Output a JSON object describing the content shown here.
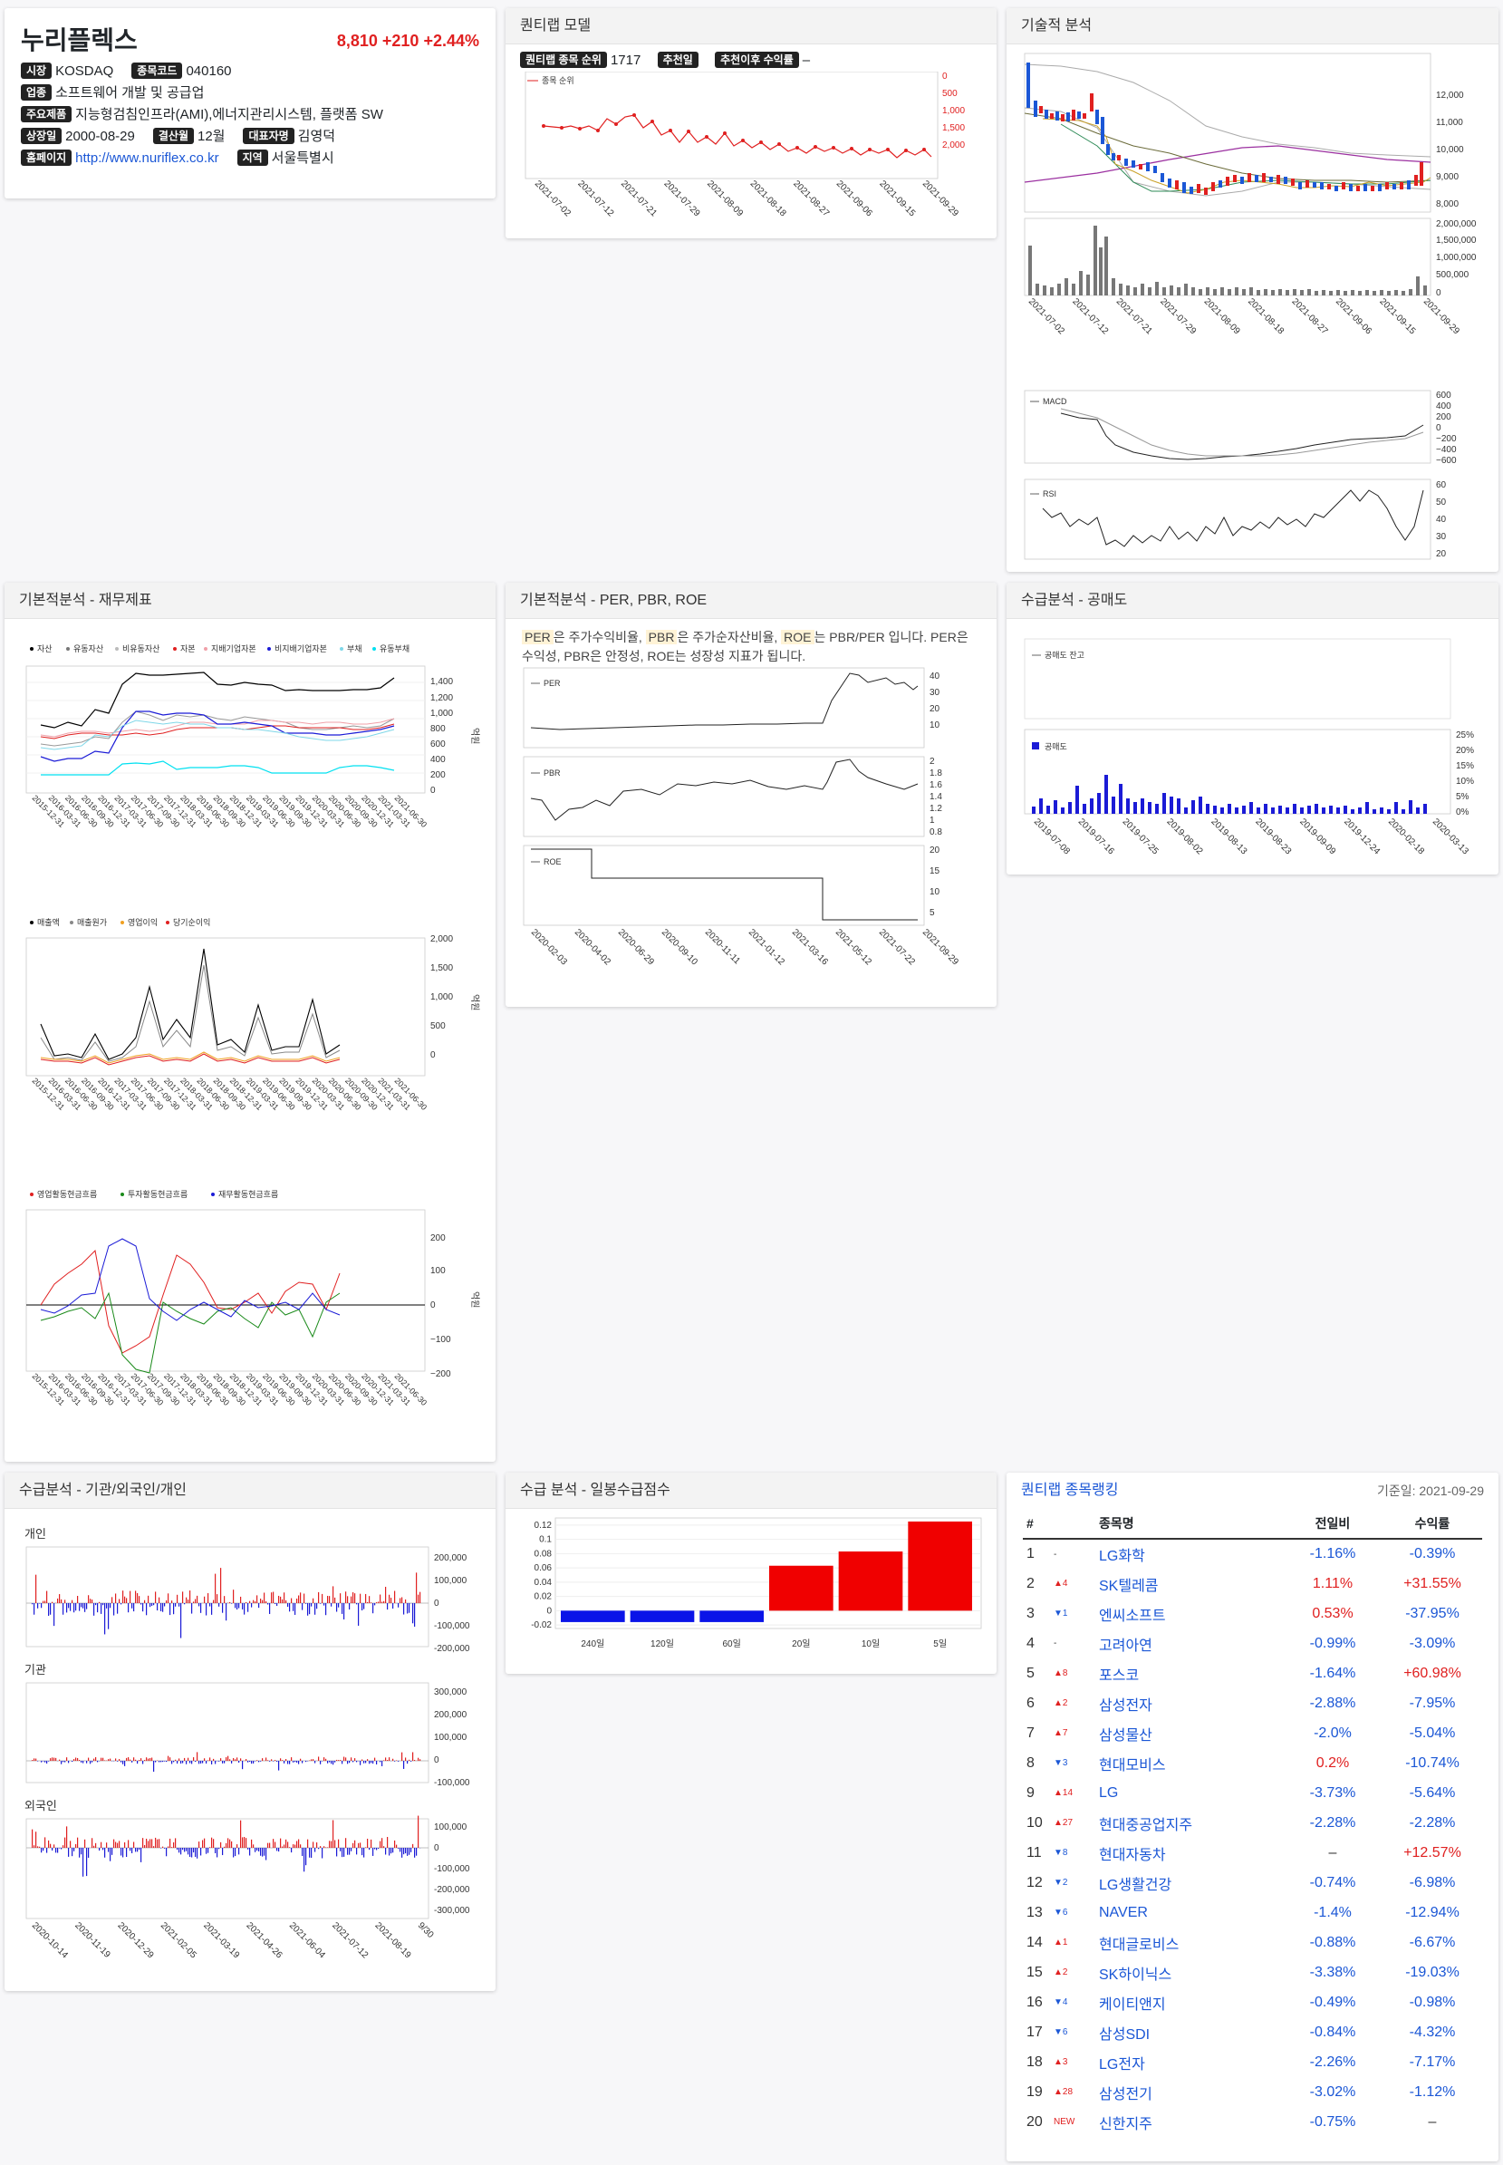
{
  "company": {
    "name": "누리플렉스",
    "price": "8,810",
    "change": "+210",
    "change_pct": "+2.44%",
    "labels": {
      "market": "시장",
      "code": "종목코드",
      "industry": "업종",
      "products": "주요제품",
      "listed": "상장일",
      "fiscal": "결산월",
      "ceo": "대표자명",
      "homepage": "홈페이지",
      "region": "지역"
    },
    "market": "KOSDAQ",
    "code": "040160",
    "industry": "소프트웨어 개발 및 공급업",
    "products": "지능형검침인프라(AMI),에너지관리시스템, 플랫폼 SW",
    "listed": "2000-08-29",
    "fiscal": "12월",
    "ceo": "김영덕",
    "homepage": "http://www.nuriflex.co.kr",
    "region": "서울특별시"
  },
  "quantimap": {
    "title": "퀀티랩 모델",
    "rank_label": "퀀티랩 종목 순위",
    "rank_value": "1717",
    "recommend_label": "추천일",
    "return_label": "추천이후 수익률",
    "return_value": "–",
    "legend": "종목 순위",
    "yticks": [
      "0",
      "500",
      "1,000",
      "1,500",
      "2,000"
    ],
    "xticks": [
      "2021-07-02",
      "2021-07-12",
      "2021-07-21",
      "2021-07-29",
      "2021-08-09",
      "2021-08-18",
      "2021-08-27",
      "2021-09-06",
      "2021-09-15",
      "2021-09-29"
    ]
  },
  "technical": {
    "title": "기술적 분석",
    "price_ticks": [
      "12,000",
      "11,000",
      "10,000",
      "9,000",
      "8,000"
    ],
    "volume_ticks": [
      "2,000,000",
      "1,500,000",
      "1,000,000",
      "500,000",
      "0"
    ],
    "xticks": [
      "2021-07-02",
      "2021-07-12",
      "2021-07-21",
      "2021-07-29",
      "2021-08-09",
      "2021-08-18",
      "2021-08-27",
      "2021-09-06",
      "2021-09-15",
      "2021-09-29"
    ],
    "macd_label": "MACD",
    "macd_ticks": [
      "600",
      "400",
      "200",
      "0",
      "−200",
      "−400",
      "−600"
    ],
    "rsi_label": "RSI",
    "rsi_ticks": [
      "60",
      "50",
      "40",
      "30",
      "20"
    ]
  },
  "fundamental": {
    "title": "기본적분석 - 재무제표",
    "bs_legend": [
      "자산",
      "유동자산",
      "비유동자산",
      "자본",
      "지배기업자본",
      "비지배기업자본",
      "부채",
      "유동부채"
    ],
    "bs_ticks": [
      "1,400",
      "1,200",
      "1,000",
      "800",
      "600",
      "400",
      "200",
      "0"
    ],
    "pl_legend": [
      "매출액",
      "매출원가",
      "영업이익",
      "당기순이익"
    ],
    "pl_ticks": [
      "2,000",
      "1,500",
      "1,000",
      "500",
      "0"
    ],
    "cf_legend": [
      "영업활동현금흐름",
      "투자활동현금흐름",
      "재무활동현금흐름"
    ],
    "cf_ticks": [
      "200",
      "100",
      "0",
      "−100",
      "−200"
    ],
    "unit": "억원",
    "xticks": [
      "2015-12-31",
      "2016-03-31",
      "2016-06-30",
      "2016-09-30",
      "2016-12-31",
      "2017-03-31",
      "2017-06-30",
      "2017-09-30",
      "2017-12-31",
      "2018-03-31",
      "2018-06-30",
      "2018-09-30",
      "2018-12-31",
      "2019-03-31",
      "2019-06-30",
      "2019-09-30",
      "2019-12-31",
      "2020-03-31",
      "2020-06-30",
      "2020-09-30",
      "2020-12-31",
      "2021-03-31",
      "2021-06-30"
    ]
  },
  "valuation": {
    "title": "기본적분석 - PER, PBR, ROE",
    "desc_parts": [
      "PER",
      "은 주가수익비율, ",
      "PBR",
      "은 주가순자산비율, ",
      "ROE",
      "는 PBR/PER 입니다. PER은 수익성, PBR은 안정성, ROE는 성장성 지표가 됩니다."
    ],
    "per_label": "PER",
    "per_ticks": [
      "40",
      "30",
      "20",
      "10"
    ],
    "pbr_label": "PBR",
    "pbr_ticks": [
      "2",
      "1.8",
      "1.6",
      "1.4",
      "1.2",
      "1",
      "0.8"
    ],
    "roe_label": "ROE",
    "roe_ticks": [
      "20",
      "15",
      "10",
      "5"
    ],
    "xticks": [
      "2020-02-03",
      "2020-04-02",
      "2020-06-29",
      "2020-09-10",
      "2020-11-11",
      "2021-01-12",
      "2021-03-16",
      "2021-05-12",
      "2021-07-22",
      "2021-09-29"
    ]
  },
  "short": {
    "title": "수급분석 - 공매도",
    "balance_label": "공매도 잔고",
    "volume_label": "공매도",
    "pct_ticks": [
      "25%",
      "20%",
      "15%",
      "10%",
      "5%",
      "0%"
    ],
    "xticks": [
      "2019-07-08",
      "2019-07-16",
      "2019-07-25",
      "2019-08-02",
      "2019-08-13",
      "2019-08-23",
      "2019-09-09",
      "2019-12-24",
      "2020-02-18",
      "2020-03-13"
    ]
  },
  "investors": {
    "title": "수급분석 - 기관/외국인/개인",
    "individual": "개인",
    "individual_ticks": [
      "200,000",
      "100,000",
      "0",
      "-100,000",
      "-200,000"
    ],
    "institution": "기관",
    "institution_ticks": [
      "300,000",
      "200,000",
      "100,000",
      "0",
      "-100,000"
    ],
    "foreign": "외국인",
    "foreign_ticks": [
      "100,000",
      "0",
      "-100,000",
      "-200,000",
      "-300,000"
    ],
    "xticks": [
      "2020-10-14",
      "2020-11-19",
      "2020-12-29",
      "2021-02-05",
      "2021-03-19",
      "2021-04-26",
      "2021-06-04",
      "2021-07-12",
      "2021-08-19",
      "9/30"
    ]
  },
  "supply_score": {
    "title": "수급 분석 - 일봉수급점수",
    "yticks": [
      "0.12",
      "0.1",
      "0.08",
      "0.06",
      "0.04",
      "0.02",
      "0",
      "-0.02"
    ],
    "chart_data": {
      "type": "bar",
      "categories": [
        "240일",
        "120일",
        "60일",
        "20일",
        "10일",
        "5일"
      ],
      "values": [
        -0.016,
        -0.016,
        -0.016,
        0.063,
        0.083,
        0.125
      ],
      "ylim": [
        -0.025,
        0.13
      ]
    }
  },
  "ranking": {
    "title": "퀀티랩 종목랭킹",
    "date": "기준일: 2021-09-29",
    "headers": [
      "#",
      "종목명",
      "전일비",
      "수익률"
    ],
    "rows": [
      {
        "n": "1",
        "mv": "-",
        "name": "LG화학",
        "chg": "-1.16%",
        "ret": "-0.39%"
      },
      {
        "n": "2",
        "mv": "▲4",
        "name": "SK텔레콤",
        "chg": "1.11%",
        "ret": "+31.55%"
      },
      {
        "n": "3",
        "mv": "▼1",
        "name": "엔씨소프트",
        "chg": "0.53%",
        "ret": "-37.95%"
      },
      {
        "n": "4",
        "mv": "-",
        "name": "고려아연",
        "chg": "-0.99%",
        "ret": "-3.09%"
      },
      {
        "n": "5",
        "mv": "▲8",
        "name": "포스코",
        "chg": "-1.64%",
        "ret": "+60.98%"
      },
      {
        "n": "6",
        "mv": "▲2",
        "name": "삼성전자",
        "chg": "-2.88%",
        "ret": "-7.95%"
      },
      {
        "n": "7",
        "mv": "▲7",
        "name": "삼성물산",
        "chg": "-2.0%",
        "ret": "-5.04%"
      },
      {
        "n": "8",
        "mv": "▼3",
        "name": "현대모비스",
        "chg": "0.2%",
        "ret": "-10.74%"
      },
      {
        "n": "9",
        "mv": "▲14",
        "name": "LG",
        "chg": "-3.73%",
        "ret": "-5.64%"
      },
      {
        "n": "10",
        "mv": "▲27",
        "name": "현대중공업지주",
        "chg": "-2.28%",
        "ret": "-2.28%"
      },
      {
        "n": "11",
        "mv": "▼8",
        "name": "현대자동차",
        "chg": "–",
        "ret": "+12.57%"
      },
      {
        "n": "12",
        "mv": "▼2",
        "name": "LG생활건강",
        "chg": "-0.74%",
        "ret": "-6.98%"
      },
      {
        "n": "13",
        "mv": "▼6",
        "name": "NAVER",
        "chg": "-1.4%",
        "ret": "-12.94%"
      },
      {
        "n": "14",
        "mv": "▲1",
        "name": "현대글로비스",
        "chg": "-0.88%",
        "ret": "-6.67%"
      },
      {
        "n": "15",
        "mv": "▲2",
        "name": "SK하이닉스",
        "chg": "-3.38%",
        "ret": "-19.03%"
      },
      {
        "n": "16",
        "mv": "▼4",
        "name": "케이티앤지",
        "chg": "-0.49%",
        "ret": "-0.98%"
      },
      {
        "n": "17",
        "mv": "▼6",
        "name": "삼성SDI",
        "chg": "-0.84%",
        "ret": "-4.32%"
      },
      {
        "n": "18",
        "mv": "▲3",
        "name": "LG전자",
        "chg": "-2.26%",
        "ret": "-7.17%"
      },
      {
        "n": "19",
        "mv": "▲28",
        "name": "삼성전기",
        "chg": "-3.02%",
        "ret": "-1.12%"
      },
      {
        "n": "20",
        "mv": "NEW",
        "name": "신한지주",
        "chg": "-0.75%",
        "ret": "–"
      }
    ]
  },
  "colors": {
    "up": "#e02020",
    "down": "#1b57d6",
    "badge": "#222222"
  }
}
